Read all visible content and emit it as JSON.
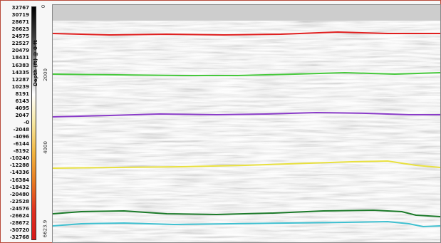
{
  "color_scale": {
    "labels": [
      "32767",
      "30719",
      "28671",
      "26623",
      "24575",
      "22527",
      "20479",
      "18431",
      "16383",
      "14335",
      "12287",
      "10239",
      "8191",
      "6143",
      "4095",
      "2047",
      "-0",
      "-2048",
      "-4096",
      "-6144",
      "-8192",
      "-10240",
      "-12288",
      "-14336",
      "-16384",
      "-18432",
      "-20480",
      "-22528",
      "-24576",
      "-26624",
      "-28672",
      "-30720",
      "-32768"
    ],
    "gradient_stops": [
      "#000000",
      "#3a3a3a",
      "#9a9a9a",
      "#ffffff",
      "#f7e8a0",
      "#f2b640",
      "#e87a20",
      "#e03020",
      "#d81818"
    ]
  },
  "depth_axis": {
    "title": "Depth (ft) @ 0 ft",
    "ticks": [
      "0",
      "2000",
      "4000",
      "6623.9"
    ]
  },
  "horizons": [
    {
      "color": "#e02020"
    },
    {
      "color": "#46c83c"
    },
    {
      "color": "#8a3cc8"
    },
    {
      "color": "#e8e040"
    },
    {
      "color": "#1c7a2a"
    },
    {
      "color": "#40c0d0"
    }
  ]
}
